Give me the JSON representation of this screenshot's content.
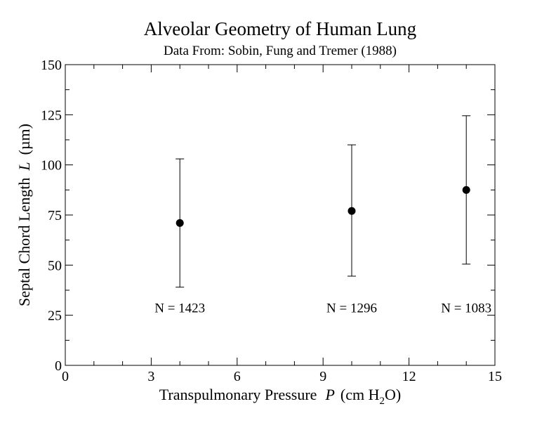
{
  "chart_data": {
    "type": "scatter",
    "title": "Alveolar Geometry of Human Lung",
    "subtitle": "Data From: Sobin, Fung and Tremer (1988)",
    "xlabel": {
      "prefix": "Transpulmonary Pressure",
      "symbol": "P",
      "unit_open": "(cm H",
      "unit_sub": "2",
      "unit_close": "O)"
    },
    "ylabel": {
      "prefix": "Septal Chord Length",
      "symbol": "L",
      "unit": "(µm)"
    },
    "xlim": [
      0,
      15
    ],
    "ylim": [
      0,
      150
    ],
    "xticks": [
      0,
      3,
      6,
      9,
      12,
      15
    ],
    "yticks": [
      0,
      25,
      50,
      75,
      100,
      125,
      150
    ],
    "xtick_labels": [
      "0",
      "3",
      "6",
      "9",
      "12",
      "15"
    ],
    "ytick_labels": [
      "0",
      "25",
      "50",
      "75",
      "100",
      "125",
      "150"
    ],
    "x_minor_step": 1,
    "y_minor_step": 12.5,
    "grid": false,
    "series": [
      {
        "x": [
          4,
          10,
          14
        ],
        "y": [
          71,
          77,
          87.5
        ],
        "error_low": [
          39,
          44.5,
          50.5
        ],
        "error_high": [
          103,
          110,
          124.5
        ]
      }
    ],
    "annotations": [
      {
        "text": "N = 1423",
        "x": 4,
        "y": 26.5
      },
      {
        "text": "N = 1296",
        "x": 10,
        "y": 26.5
      },
      {
        "text": "N = 1083",
        "x": 14,
        "y": 26.5
      }
    ],
    "colors": {
      "marker": "#000000",
      "axis": "#000000",
      "background": "#ffffff"
    }
  }
}
